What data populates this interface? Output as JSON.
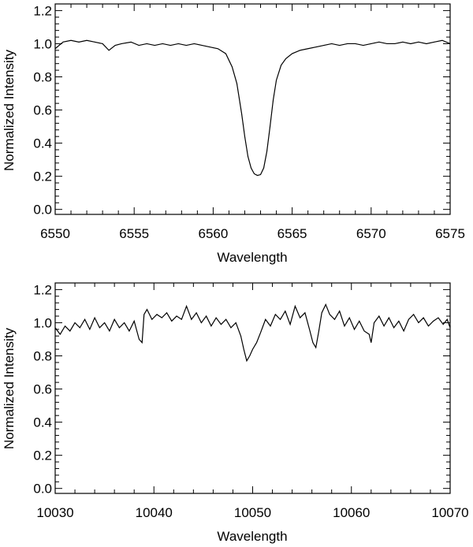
{
  "chart_data": [
    {
      "type": "line",
      "xlabel": "Wavelength",
      "ylabel": "Normalized Intensity",
      "xlim": [
        6550,
        6575
      ],
      "ylim": [
        -0.03,
        1.24
      ],
      "x_ticks": [
        "6550",
        "6555",
        "6560",
        "6565",
        "6570",
        "6575"
      ],
      "y_ticks": [
        "0.0",
        "0.2",
        "0.4",
        "0.6",
        "0.8",
        "1.0",
        "1.2"
      ],
      "grid": false,
      "legend": "none",
      "series": [
        {
          "color": "#000000",
          "x": [
            6550.0,
            6550.5,
            6551.0,
            6551.5,
            6552.0,
            6552.5,
            6553.0,
            6553.4,
            6553.8,
            6554.2,
            6554.8,
            6555.3,
            6555.8,
            6556.3,
            6556.8,
            6557.3,
            6557.8,
            6558.3,
            6558.8,
            6559.3,
            6559.8,
            6560.3,
            6560.8,
            6561.2,
            6561.5,
            6561.8,
            6562.0,
            6562.2,
            6562.4,
            6562.6,
            6562.8,
            6563.0,
            6563.2,
            6563.4,
            6563.6,
            6563.8,
            6564.0,
            6564.3,
            6564.6,
            6565.0,
            6565.5,
            6566.0,
            6566.5,
            6567.0,
            6567.5,
            6568.0,
            6568.5,
            6569.0,
            6569.5,
            6570.0,
            6570.5,
            6571.0,
            6571.5,
            6572.0,
            6572.5,
            6573.0,
            6573.5,
            6574.0,
            6574.5,
            6575.0
          ],
          "y": [
            0.97,
            1.01,
            1.02,
            1.01,
            1.02,
            1.01,
            1.0,
            0.96,
            0.99,
            1.0,
            1.01,
            0.99,
            1.0,
            0.99,
            1.0,
            0.99,
            1.0,
            0.99,
            1.0,
            0.99,
            0.98,
            0.97,
            0.94,
            0.86,
            0.76,
            0.58,
            0.44,
            0.32,
            0.25,
            0.215,
            0.205,
            0.21,
            0.25,
            0.35,
            0.5,
            0.66,
            0.78,
            0.87,
            0.91,
            0.94,
            0.96,
            0.97,
            0.98,
            0.99,
            1.0,
            0.99,
            1.0,
            1.0,
            0.99,
            1.0,
            1.01,
            1.0,
            1.0,
            1.01,
            1.0,
            1.01,
            1.0,
            1.01,
            1.02,
            1.0
          ]
        }
      ]
    },
    {
      "type": "line",
      "xlabel": "Wavelength",
      "ylabel": "Normalized Intensity",
      "xlim": [
        10030,
        10070
      ],
      "ylim": [
        -0.03,
        1.24
      ],
      "x_ticks": [
        "10030",
        "10040",
        "10050",
        "10060",
        "10070"
      ],
      "y_ticks": [
        "0.0",
        "0.2",
        "0.4",
        "0.6",
        "0.8",
        "1.0",
        "1.2"
      ],
      "grid": false,
      "legend": "none",
      "series": [
        {
          "color": "#000000",
          "x": [
            10030.0,
            10030.5,
            10031.0,
            10031.5,
            10032.0,
            10032.5,
            10033.0,
            10033.5,
            10034.0,
            10034.5,
            10035.0,
            10035.5,
            10036.0,
            10036.5,
            10037.0,
            10037.5,
            10038.0,
            10038.5,
            10038.8,
            10039.0,
            10039.3,
            10039.8,
            10040.3,
            10040.8,
            10041.3,
            10041.8,
            10042.3,
            10042.8,
            10043.3,
            10043.8,
            10044.3,
            10044.8,
            10045.3,
            10045.8,
            10046.3,
            10046.8,
            10047.3,
            10047.8,
            10048.3,
            10048.8,
            10049.1,
            10049.4,
            10049.7,
            10050.0,
            10050.4,
            10050.8,
            10051.3,
            10051.8,
            10052.3,
            10052.8,
            10053.3,
            10053.8,
            10054.3,
            10054.8,
            10055.3,
            10055.8,
            10056.1,
            10056.4,
            10056.7,
            10057.0,
            10057.4,
            10057.8,
            10058.3,
            10058.8,
            10059.3,
            10059.8,
            10060.3,
            10060.8,
            10061.3,
            10061.8,
            10062.0,
            10062.3,
            10062.8,
            10063.3,
            10063.8,
            10064.3,
            10064.8,
            10065.3,
            10065.8,
            10066.3,
            10066.8,
            10067.3,
            10067.8,
            10068.3,
            10068.8,
            10069.3,
            10069.7,
            10070.0
          ],
          "y": [
            0.97,
            0.93,
            0.98,
            0.95,
            1.0,
            0.97,
            1.02,
            0.96,
            1.03,
            0.97,
            1.0,
            0.95,
            1.02,
            0.97,
            1.0,
            0.95,
            1.01,
            0.9,
            0.88,
            1.05,
            1.08,
            1.02,
            1.05,
            1.03,
            1.06,
            1.01,
            1.04,
            1.02,
            1.1,
            1.02,
            1.06,
            1.0,
            1.04,
            0.98,
            1.03,
            0.99,
            1.02,
            0.97,
            1.0,
            0.92,
            0.84,
            0.77,
            0.8,
            0.84,
            0.88,
            0.94,
            1.02,
            0.98,
            1.05,
            1.02,
            1.07,
            0.99,
            1.1,
            1.03,
            1.06,
            0.95,
            0.88,
            0.85,
            0.95,
            1.06,
            1.11,
            1.05,
            1.02,
            1.07,
            0.98,
            1.03,
            0.96,
            1.01,
            0.95,
            0.93,
            0.88,
            1.0,
            1.04,
            0.98,
            1.03,
            0.97,
            1.01,
            0.95,
            1.02,
            1.05,
            1.0,
            1.03,
            0.98,
            1.01,
            1.03,
            0.99,
            1.02,
            0.97
          ]
        }
      ]
    }
  ]
}
